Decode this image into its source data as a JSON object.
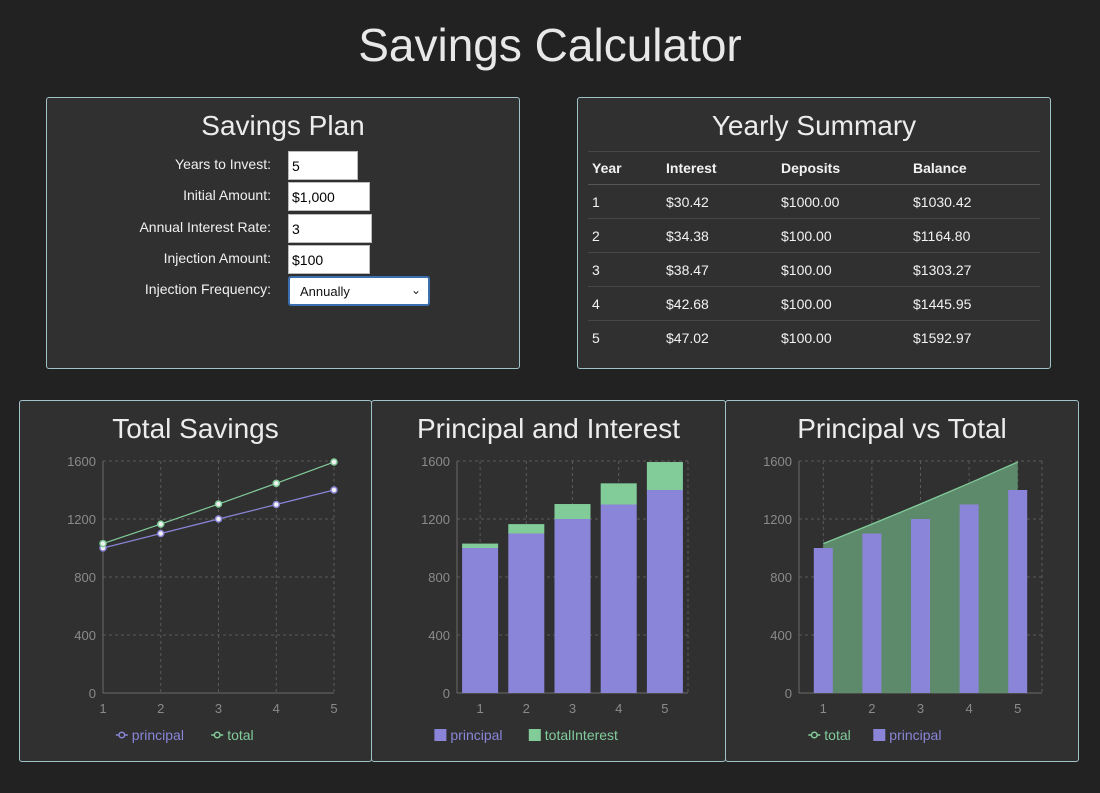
{
  "app": {
    "title": "Savings Calculator"
  },
  "plan": {
    "title": "Savings Plan",
    "years_label": "Years to Invest:",
    "years_value": "5",
    "initial_label": "Initial Amount:",
    "initial_value": "$1,000",
    "rate_label": "Annual Interest Rate:",
    "rate_value": "3",
    "injection_label": "Injection Amount:",
    "injection_value": "$100",
    "frequency_label": "Injection Frequency:",
    "frequency_value": "Annually"
  },
  "summary": {
    "title": "Yearly Summary",
    "headers": [
      "Year",
      "Interest",
      "Deposits",
      "Balance"
    ],
    "rows": [
      [
        "1",
        "$30.42",
        "$1000.00",
        "$1030.42"
      ],
      [
        "2",
        "$34.38",
        "$100.00",
        "$1164.80"
      ],
      [
        "3",
        "$38.47",
        "$100.00",
        "$1303.27"
      ],
      [
        "4",
        "$42.68",
        "$100.00",
        "$1445.95"
      ],
      [
        "5",
        "$47.02",
        "$100.00",
        "$1592.97"
      ]
    ]
  },
  "colors": {
    "principal": "#8a85d8",
    "total": "#82cc9a",
    "panel_border": "#9fc3c9"
  },
  "chart_data": [
    {
      "type": "line",
      "title": "Total Savings",
      "x": [
        1,
        2,
        3,
        4,
        5
      ],
      "ylim": [
        0,
        1600
      ],
      "yticks": [
        0,
        400,
        800,
        1200,
        1600
      ],
      "grid": true,
      "legend": "bottom",
      "series": [
        {
          "name": "principal",
          "values": [
            1000,
            1100,
            1200,
            1300,
            1400
          ]
        },
        {
          "name": "total",
          "values": [
            1030.42,
            1164.8,
            1303.27,
            1445.95,
            1592.97
          ]
        }
      ]
    },
    {
      "type": "bar",
      "stacked": true,
      "title": "Principal and Interest",
      "categories": [
        "1",
        "2",
        "3",
        "4",
        "5"
      ],
      "ylim": [
        0,
        1600
      ],
      "yticks": [
        0,
        400,
        800,
        1200,
        1600
      ],
      "grid": true,
      "legend": "bottom",
      "series": [
        {
          "name": "principal",
          "values": [
            1000,
            1100,
            1200,
            1300,
            1400
          ]
        },
        {
          "name": "totalInterest",
          "values": [
            30.42,
            64.8,
            103.27,
            145.95,
            192.97
          ]
        }
      ]
    },
    {
      "type": "bar",
      "title": "Principal vs Total",
      "categories": [
        "1",
        "2",
        "3",
        "4",
        "5"
      ],
      "ylim": [
        0,
        1600
      ],
      "yticks": [
        0,
        400,
        800,
        1200,
        1600
      ],
      "grid": true,
      "legend": "bottom",
      "series": [
        {
          "name": "total",
          "type": "area",
          "values": [
            1030.42,
            1164.8,
            1303.27,
            1445.95,
            1592.97
          ]
        },
        {
          "name": "principal",
          "type": "bar",
          "values": [
            1000,
            1100,
            1200,
            1300,
            1400
          ]
        }
      ]
    }
  ]
}
